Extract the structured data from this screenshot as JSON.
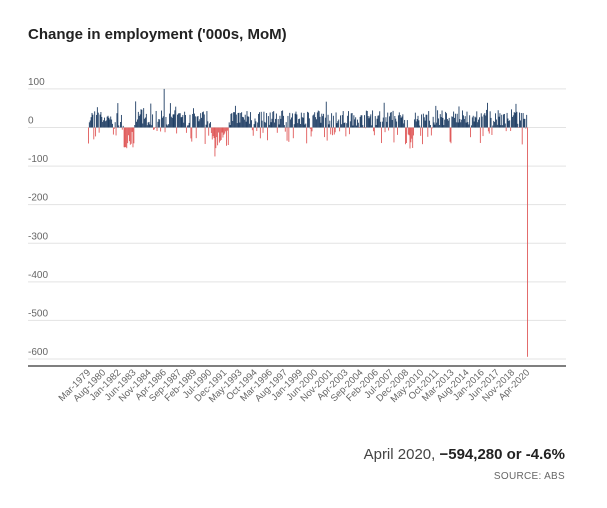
{
  "chart_data": {
    "type": "bar",
    "title": "Change in employment ('000s, MoM)",
    "ylim": [
      -620,
      110
    ],
    "y_ticks": [
      100,
      0,
      -100,
      -200,
      -300,
      -400,
      -500,
      -600
    ],
    "x_ticks": [
      "Mar-1979",
      "Aug-1980",
      "Jan-1982",
      "Jun-1983",
      "Nov-1984",
      "Apr-1986",
      "Sep-1987",
      "Feb-1989",
      "Jul-1990",
      "Dec-1991",
      "May-1993",
      "Oct-1994",
      "Mar-1996",
      "Aug-1997",
      "Jan-1999",
      "Jun-2000",
      "Nov-2001",
      "Apr-2003",
      "Sep-2004",
      "Feb-2006",
      "Jul-2007",
      "Dec-2008",
      "May-2010",
      "Oct-2011",
      "Mar-2013",
      "Aug-2014",
      "Jan-2016",
      "Jun-2017",
      "Nov-2018",
      "Apr-2020"
    ],
    "period": {
      "start": "1979-03",
      "end": "2020-04"
    },
    "series": [
      {
        "unit": "'000s",
        "notable_values": [
          {
            "date": "1986-04",
            "value": 100
          },
          {
            "date": "1991-01",
            "value": -75
          },
          {
            "date": "2020-04",
            "value": -594.28
          }
        ],
        "typical_range": [
          -60,
          75
        ]
      }
    ],
    "colors": {
      "positive": "#1f3e64",
      "negative": "#e05a5a",
      "axis": "#333333",
      "grid": "#e3e3e3"
    },
    "grid": true
  },
  "annotation": {
    "prefix": "April 2020, ",
    "value": "−594,280 or -4.6%"
  },
  "source": "SOURCE: ABS"
}
